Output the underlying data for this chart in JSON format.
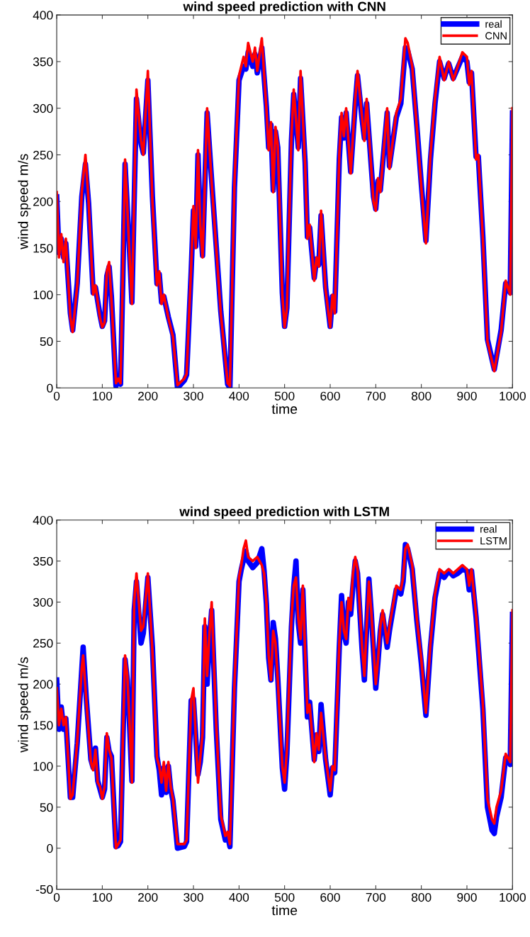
{
  "chart_data": [
    {
      "type": "line",
      "title": "wind speed prediction with CNN",
      "xlabel": "time",
      "ylabel": "wind speed m/s",
      "xlim": [
        0,
        1000
      ],
      "xticks": [
        0,
        100,
        200,
        300,
        400,
        500,
        600,
        700,
        800,
        900,
        1000
      ],
      "ylim": [
        0,
        400
      ],
      "yticks": [
        0,
        50,
        100,
        150,
        200,
        250,
        300,
        350,
        400
      ],
      "legend": "top right",
      "grid": false,
      "series": [
        {
          "name": "real",
          "color": "#0000ff",
          "x": [
            0,
            5,
            10,
            15,
            20,
            30,
            35,
            45,
            55,
            63,
            70,
            80,
            85,
            95,
            100,
            105,
            110,
            115,
            120,
            130,
            135,
            140,
            145,
            150,
            160,
            165,
            175,
            185,
            190,
            200,
            210,
            220,
            225,
            230,
            235,
            245,
            255,
            265,
            280,
            285,
            295,
            300,
            305,
            310,
            315,
            320,
            330,
            340,
            350,
            360,
            375,
            380,
            390,
            400,
            410,
            415,
            420,
            430,
            435,
            440,
            450,
            460,
            465,
            470,
            475,
            480,
            485,
            495,
            500,
            505,
            515,
            520,
            530,
            535,
            545,
            550,
            555,
            565,
            570,
            575,
            580,
            590,
            600,
            605,
            610,
            620,
            625,
            630,
            635,
            645,
            655,
            660,
            670,
            675,
            680,
            695,
            700,
            705,
            710,
            725,
            730,
            745,
            755,
            765,
            770,
            780,
            790,
            800,
            810,
            820,
            830,
            840,
            850,
            860,
            870,
            890,
            900,
            905,
            910,
            920,
            925,
            935,
            945,
            960,
            975,
            985,
            995,
            1000
          ],
          "values": [
            205,
            145,
            160,
            140,
            155,
            80,
            62,
            112,
            205,
            240,
            198,
            102,
            108,
            78,
            66,
            72,
            120,
            130,
            98,
            2,
            8,
            4,
            115,
            240,
            145,
            92,
            310,
            262,
            252,
            330,
            205,
            112,
            122,
            92,
            98,
            76,
            57,
            0,
            8,
            14,
            125,
            190,
            152,
            250,
            178,
            142,
            295,
            222,
            152,
            82,
            4,
            0,
            215,
            330,
            345,
            342,
            360,
            345,
            358,
            338,
            365,
            302,
            258,
            282,
            212,
            275,
            258,
            102,
            66,
            86,
            265,
            315,
            258,
            332,
            242,
            162,
            172,
            118,
            138,
            132,
            185,
            108,
            66,
            98,
            82,
            245,
            290,
            268,
            295,
            232,
            305,
            335,
            288,
            268,
            305,
            205,
            192,
            222,
            212,
            295,
            238,
            290,
            305,
            365,
            362,
            342,
            282,
            218,
            158,
            245,
            305,
            350,
            332,
            348,
            332,
            355,
            350,
            328,
            338,
            248,
            248,
            162,
            52,
            20,
            62,
            112,
            102,
            295
          ]
        },
        {
          "name": "CNN",
          "color": "#ff0000",
          "x": [
            0,
            5,
            10,
            15,
            20,
            30,
            35,
            45,
            55,
            63,
            70,
            80,
            85,
            95,
            100,
            105,
            110,
            115,
            120,
            130,
            135,
            140,
            145,
            150,
            160,
            165,
            175,
            185,
            190,
            200,
            210,
            220,
            225,
            230,
            235,
            245,
            255,
            265,
            280,
            285,
            295,
            300,
            305,
            310,
            315,
            320,
            330,
            340,
            350,
            360,
            375,
            380,
            390,
            400,
            410,
            415,
            420,
            430,
            435,
            440,
            450,
            460,
            465,
            470,
            475,
            480,
            485,
            495,
            500,
            505,
            515,
            520,
            530,
            535,
            545,
            550,
            555,
            565,
            570,
            575,
            580,
            590,
            600,
            605,
            610,
            620,
            625,
            630,
            635,
            645,
            655,
            660,
            670,
            675,
            680,
            695,
            700,
            705,
            710,
            725,
            730,
            745,
            755,
            765,
            770,
            780,
            790,
            800,
            810,
            820,
            830,
            840,
            850,
            860,
            870,
            890,
            900,
            905,
            910,
            920,
            925,
            935,
            945,
            960,
            975,
            985,
            995,
            1000
          ],
          "values": [
            210,
            140,
            165,
            135,
            160,
            75,
            60,
            110,
            210,
            250,
            200,
            100,
            110,
            75,
            65,
            70,
            125,
            135,
            95,
            5,
            10,
            5,
            120,
            245,
            140,
            90,
            320,
            265,
            250,
            340,
            200,
            110,
            125,
            90,
            100,
            75,
            55,
            3,
            10,
            15,
            130,
            195,
            150,
            255,
            175,
            140,
            300,
            220,
            150,
            80,
            5,
            2,
            220,
            335,
            355,
            345,
            370,
            350,
            365,
            340,
            375,
            300,
            255,
            285,
            210,
            280,
            260,
            100,
            65,
            85,
            270,
            320,
            255,
            340,
            240,
            160,
            175,
            115,
            140,
            130,
            190,
            105,
            65,
            100,
            80,
            250,
            295,
            270,
            300,
            230,
            310,
            340,
            290,
            265,
            310,
            200,
            190,
            225,
            210,
            300,
            235,
            295,
            310,
            375,
            370,
            345,
            280,
            215,
            155,
            250,
            310,
            355,
            330,
            350,
            330,
            360,
            355,
            325,
            340,
            245,
            250,
            160,
            50,
            18,
            60,
            115,
            100,
            300
          ]
        }
      ]
    },
    {
      "type": "line",
      "title": "wind speed prediction with LSTM",
      "xlabel": "time",
      "ylabel": "wind speed m/s",
      "xlim": [
        0,
        1000
      ],
      "xticks": [
        0,
        100,
        200,
        300,
        400,
        500,
        600,
        700,
        800,
        900,
        1000
      ],
      "ylim": [
        -50,
        400
      ],
      "yticks": [
        -50,
        0,
        50,
        100,
        150,
        200,
        250,
        300,
        350,
        400
      ],
      "legend": "top right",
      "grid": false,
      "series": [
        {
          "name": "real",
          "color": "#0000ff",
          "x": [
            0,
            5,
            10,
            15,
            20,
            30,
            35,
            45,
            55,
            58,
            65,
            75,
            80,
            85,
            90,
            95,
            100,
            105,
            110,
            115,
            120,
            130,
            135,
            140,
            145,
            150,
            155,
            160,
            165,
            170,
            175,
            185,
            190,
            200,
            210,
            220,
            225,
            230,
            235,
            240,
            245,
            250,
            255,
            265,
            280,
            285,
            295,
            300,
            310,
            315,
            320,
            325,
            330,
            335,
            340,
            350,
            360,
            370,
            375,
            380,
            390,
            400,
            405,
            410,
            415,
            420,
            430,
            440,
            450,
            455,
            460,
            465,
            470,
            475,
            480,
            485,
            495,
            500,
            505,
            515,
            520,
            525,
            530,
            535,
            540,
            545,
            550,
            555,
            565,
            570,
            575,
            580,
            590,
            600,
            605,
            610,
            620,
            625,
            630,
            635,
            640,
            645,
            650,
            655,
            660,
            670,
            675,
            680,
            685,
            690,
            700,
            705,
            710,
            715,
            725,
            730,
            745,
            755,
            760,
            765,
            770,
            780,
            790,
            800,
            810,
            820,
            830,
            840,
            850,
            860,
            870,
            880,
            890,
            900,
            905,
            910,
            920,
            925,
            935,
            945,
            955,
            960,
            965,
            975,
            985,
            990,
            995,
            1000
          ],
          "values": [
            205,
            145,
            172,
            145,
            158,
            62,
            62,
            128,
            218,
            245,
            182,
            108,
            98,
            122,
            82,
            72,
            62,
            72,
            135,
            118,
            112,
            2,
            3,
            8,
            125,
            230,
            205,
            148,
            82,
            290,
            325,
            250,
            262,
            330,
            245,
            112,
            95,
            65,
            98,
            68,
            100,
            72,
            58,
            0,
            2,
            8,
            180,
            182,
            90,
            105,
            135,
            270,
            200,
            255,
            290,
            145,
            35,
            10,
            15,
            2,
            195,
            325,
            340,
            352,
            362,
            350,
            342,
            348,
            365,
            338,
            298,
            232,
            205,
            275,
            255,
            208,
            98,
            72,
            115,
            270,
            318,
            350,
            275,
            250,
            315,
            235,
            160,
            178,
            108,
            138,
            118,
            175,
            108,
            65,
            98,
            92,
            245,
            308,
            262,
            250,
            300,
            285,
            320,
            350,
            335,
            242,
            205,
            268,
            328,
            288,
            195,
            228,
            265,
            285,
            245,
            265,
            315,
            310,
            325,
            370,
            365,
            340,
            278,
            225,
            162,
            245,
            305,
            335,
            330,
            338,
            332,
            335,
            340,
            338,
            315,
            338,
            282,
            245,
            170,
            50,
            22,
            18,
            38,
            62,
            110,
            108,
            102,
            285
          ]
        },
        {
          "name": "LSTM",
          "color": "#ff0000",
          "x": [
            0,
            5,
            10,
            15,
            20,
            30,
            35,
            45,
            55,
            58,
            65,
            75,
            80,
            85,
            90,
            95,
            100,
            105,
            110,
            115,
            120,
            130,
            135,
            140,
            145,
            150,
            155,
            160,
            165,
            170,
            175,
            185,
            190,
            200,
            210,
            220,
            225,
            230,
            235,
            240,
            245,
            250,
            255,
            265,
            280,
            285,
            295,
            300,
            310,
            315,
            320,
            325,
            330,
            335,
            340,
            350,
            360,
            370,
            375,
            380,
            390,
            400,
            405,
            410,
            415,
            420,
            430,
            440,
            450,
            455,
            460,
            465,
            470,
            475,
            480,
            485,
            495,
            500,
            505,
            515,
            520,
            525,
            530,
            535,
            540,
            545,
            550,
            555,
            565,
            570,
            575,
            580,
            590,
            600,
            605,
            610,
            620,
            625,
            630,
            635,
            640,
            645,
            650,
            655,
            660,
            670,
            675,
            680,
            685,
            690,
            700,
            705,
            710,
            715,
            725,
            730,
            745,
            755,
            760,
            765,
            770,
            780,
            790,
            800,
            810,
            820,
            830,
            840,
            850,
            860,
            870,
            880,
            890,
            900,
            905,
            910,
            920,
            925,
            935,
            945,
            955,
            960,
            965,
            975,
            985,
            990,
            995,
            1000
          ],
          "values": [
            195,
            150,
            170,
            150,
            160,
            60,
            65,
            130,
            220,
            235,
            180,
            105,
            95,
            120,
            80,
            75,
            60,
            75,
            140,
            120,
            110,
            0,
            5,
            10,
            130,
            235,
            210,
            150,
            80,
            300,
            335,
            265,
            270,
            335,
            240,
            110,
            100,
            80,
            105,
            70,
            105,
            75,
            60,
            5,
            5,
            10,
            180,
            195,
            80,
            110,
            140,
            280,
            210,
            260,
            300,
            150,
            40,
            15,
            20,
            5,
            200,
            330,
            345,
            365,
            375,
            355,
            350,
            355,
            345,
            335,
            300,
            235,
            205,
            265,
            250,
            205,
            100,
            80,
            120,
            280,
            320,
            330,
            280,
            255,
            320,
            240,
            165,
            175,
            105,
            140,
            120,
            165,
            110,
            70,
            100,
            95,
            250,
            300,
            265,
            255,
            305,
            290,
            335,
            355,
            340,
            245,
            210,
            270,
            325,
            290,
            200,
            230,
            270,
            290,
            250,
            270,
            320,
            315,
            330,
            365,
            370,
            345,
            280,
            230,
            165,
            250,
            310,
            340,
            335,
            340,
            335,
            340,
            345,
            340,
            320,
            340,
            285,
            250,
            175,
            60,
            35,
            30,
            50,
            70,
            115,
            110,
            105,
            290
          ]
        }
      ]
    }
  ]
}
